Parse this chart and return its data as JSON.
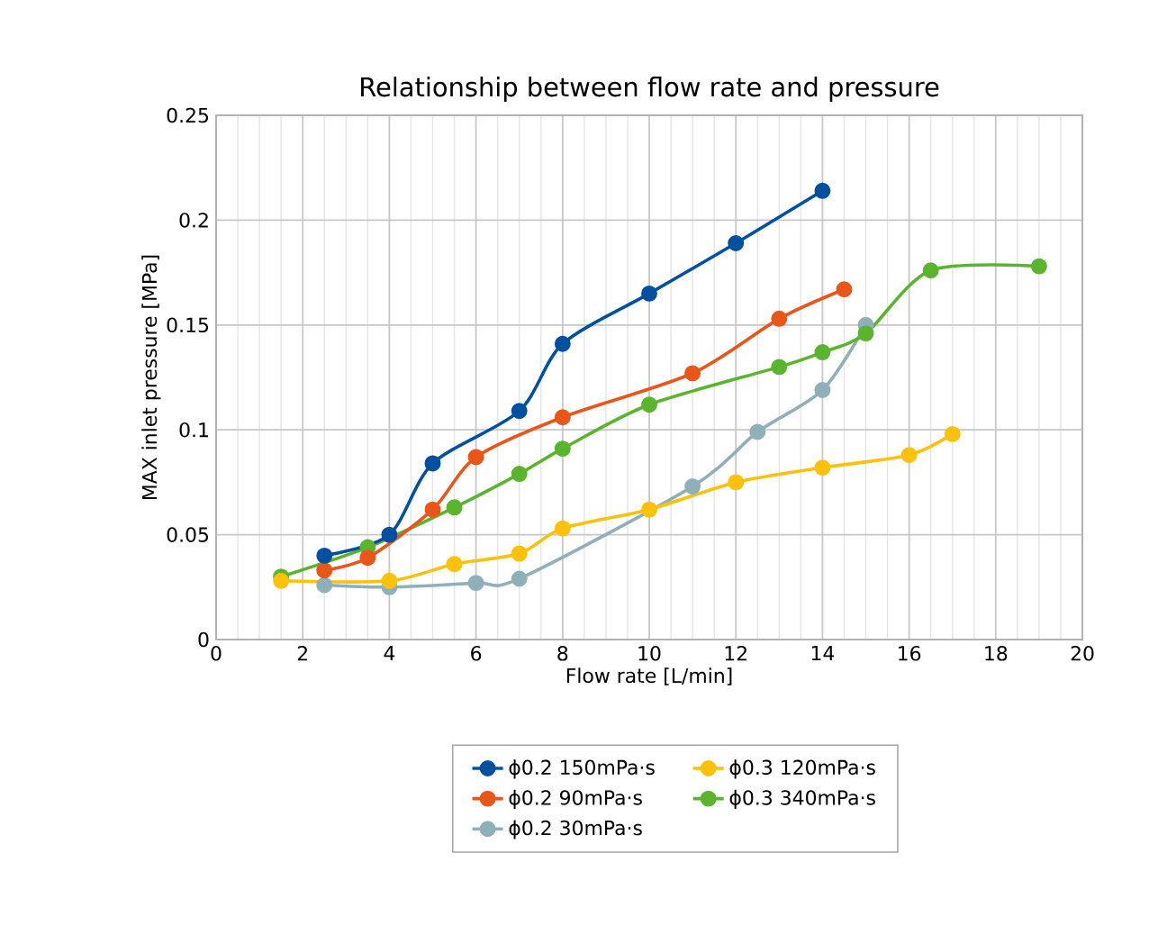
{
  "chart_data": {
    "type": "line",
    "title": "Relationship between flow rate and pressure",
    "xlabel": "Flow rate [L/min]",
    "ylabel": "MAX inlet pressure [MPa]",
    "xlim": [
      0,
      20
    ],
    "xticks": [
      0,
      2,
      4,
      6,
      8,
      10,
      12,
      14,
      16,
      18,
      20
    ],
    "ylim": [
      0,
      0.25
    ],
    "yticks": [
      0,
      0.05,
      0.1,
      0.15,
      0.2,
      0.25
    ],
    "grid": true,
    "legend": "bottom",
    "marker": "circle",
    "line_style": "solid",
    "series": [
      {
        "name": "ϕ0.2  150mPa·s",
        "color": "#0050a0",
        "x": [
          2.5,
          4,
          5,
          7,
          8,
          10,
          12,
          14
        ],
        "values": [
          0.04,
          0.05,
          0.084,
          0.109,
          0.141,
          0.165,
          0.189,
          0.214
        ]
      },
      {
        "name": "ϕ0.3  120mPa·s",
        "color": "#fcc10a",
        "x": [
          1.5,
          4,
          5.5,
          7,
          8,
          10,
          12,
          14,
          16,
          17
        ],
        "values": [
          0.028,
          0.028,
          0.036,
          0.041,
          0.053,
          0.062,
          0.075,
          0.082,
          0.088,
          0.098
        ]
      },
      {
        "name": "ϕ0.2  90mPa·s",
        "color": "#e8561a",
        "x": [
          2.5,
          3.5,
          5,
          6,
          8,
          11,
          13,
          14.5
        ],
        "values": [
          0.033,
          0.039,
          0.062,
          0.087,
          0.106,
          0.127,
          0.153,
          0.167
        ]
      },
      {
        "name": "ϕ0.3  340mPa·s",
        "color": "#5ab42d",
        "x": [
          1.5,
          3.5,
          5.5,
          7,
          8,
          10,
          13,
          14,
          15,
          16.5,
          19
        ],
        "values": [
          0.03,
          0.044,
          0.063,
          0.079,
          0.091,
          0.112,
          0.13,
          0.137,
          0.146,
          0.176,
          0.178
        ]
      },
      {
        "name": "ϕ0.2  30mPa·s",
        "color": "#8fb0b8",
        "x": [
          2.5,
          4,
          6,
          7,
          11,
          12.5,
          14,
          15
        ],
        "values": [
          0.026,
          0.025,
          0.027,
          0.029,
          0.073,
          0.099,
          0.119,
          0.15
        ]
      }
    ]
  }
}
